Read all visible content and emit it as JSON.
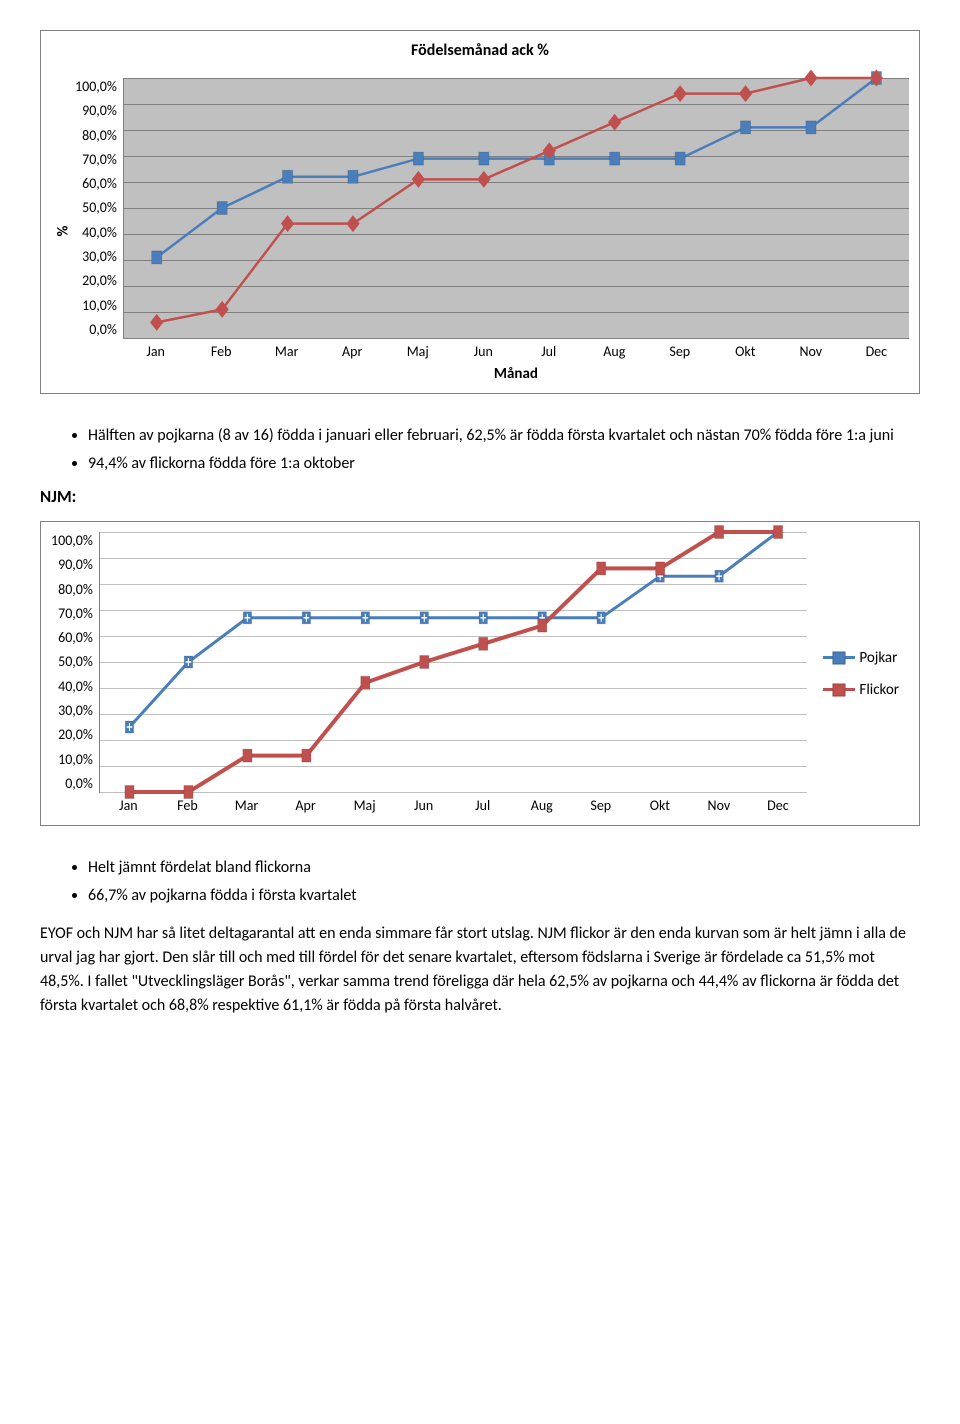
{
  "chart1": {
    "title": "Födelsemånad ack %",
    "y_label": "%",
    "x_label": "Månad",
    "y_ticks": [
      "100,0%",
      "90,0%",
      "80,0%",
      "70,0%",
      "60,0%",
      "50,0%",
      "40,0%",
      "30,0%",
      "20,0%",
      "10,0%",
      "0,0%"
    ],
    "x_ticks": [
      "Jan",
      "Feb",
      "Mar",
      "Apr",
      "Maj",
      "Jun",
      "Jul",
      "Aug",
      "Sep",
      "Okt",
      "Nov",
      "Dec"
    ],
    "ymin": 0,
    "ymax": 100,
    "plot_bg": "#c0c0c0",
    "grid_color": "#808080",
    "series": [
      {
        "name": "Pojkar",
        "color": "#4a7ebb",
        "marker": "square",
        "line_width": 2.5,
        "values": [
          31,
          50,
          62,
          62,
          69,
          69,
          69,
          69,
          69,
          81,
          81,
          100
        ]
      },
      {
        "name": "Flickor",
        "color": "#c0504d",
        "marker": "diamond",
        "line_width": 2.5,
        "values": [
          6,
          11,
          44,
          44,
          61,
          61,
          72,
          83,
          94,
          94,
          100,
          100
        ]
      }
    ]
  },
  "bullets1": [
    "Hälften av pojkarna (8 av 16) födda i januari eller februari, 62,5% är födda första kvartalet och nästan 70% födda före 1:a juni",
    "94,4% av flickorna födda före 1:a oktober"
  ],
  "section_label": "NJM:",
  "chart2": {
    "y_ticks": [
      "100,0%",
      "90,0%",
      "80,0%",
      "70,0%",
      "60,0%",
      "50,0%",
      "40,0%",
      "30,0%",
      "20,0%",
      "10,0%",
      "0,0%"
    ],
    "x_ticks": [
      "Jan",
      "Feb",
      "Mar",
      "Apr",
      "Maj",
      "Jun",
      "Jul",
      "Aug",
      "Sep",
      "Okt",
      "Nov",
      "Dec"
    ],
    "ymin": 0,
    "ymax": 100,
    "plot_bg": "#ffffff",
    "grid_color": "#bfbfbf",
    "legend": [
      "Pojkar",
      "Flickor"
    ],
    "series": [
      {
        "name": "Pojkar",
        "color": "#4a7ebb",
        "marker": "square-plus",
        "line_width": 3,
        "values": [
          25,
          50,
          67,
          67,
          67,
          67,
          67,
          67,
          67,
          83,
          83,
          100
        ]
      },
      {
        "name": "Flickor",
        "color": "#c0504d",
        "marker": "square",
        "line_width": 4,
        "values": [
          0,
          0,
          14,
          14,
          42,
          50,
          57,
          64,
          86,
          86,
          100,
          100
        ]
      }
    ]
  },
  "bullets2": [
    "Helt jämnt fördelat bland flickorna",
    "66,7% av pojkarna födda i första kvartalet"
  ],
  "paragraph": "EYOF och NJM har så litet deltagarantal att en enda simmare får stort utslag. NJM flickor är den enda kurvan som är helt jämn i alla de urval jag har gjort. Den slår till och med till fördel för det senare kvartalet, eftersom födslarna i Sverige är fördelade ca 51,5% mot 48,5%. I fallet \"Utvecklingsläger Borås\", verkar samma trend föreligga där hela 62,5% av pojkarna och 44,4% av flickorna är födda det första kvartalet och 68,8% respektive 61,1% är födda på första halvåret."
}
